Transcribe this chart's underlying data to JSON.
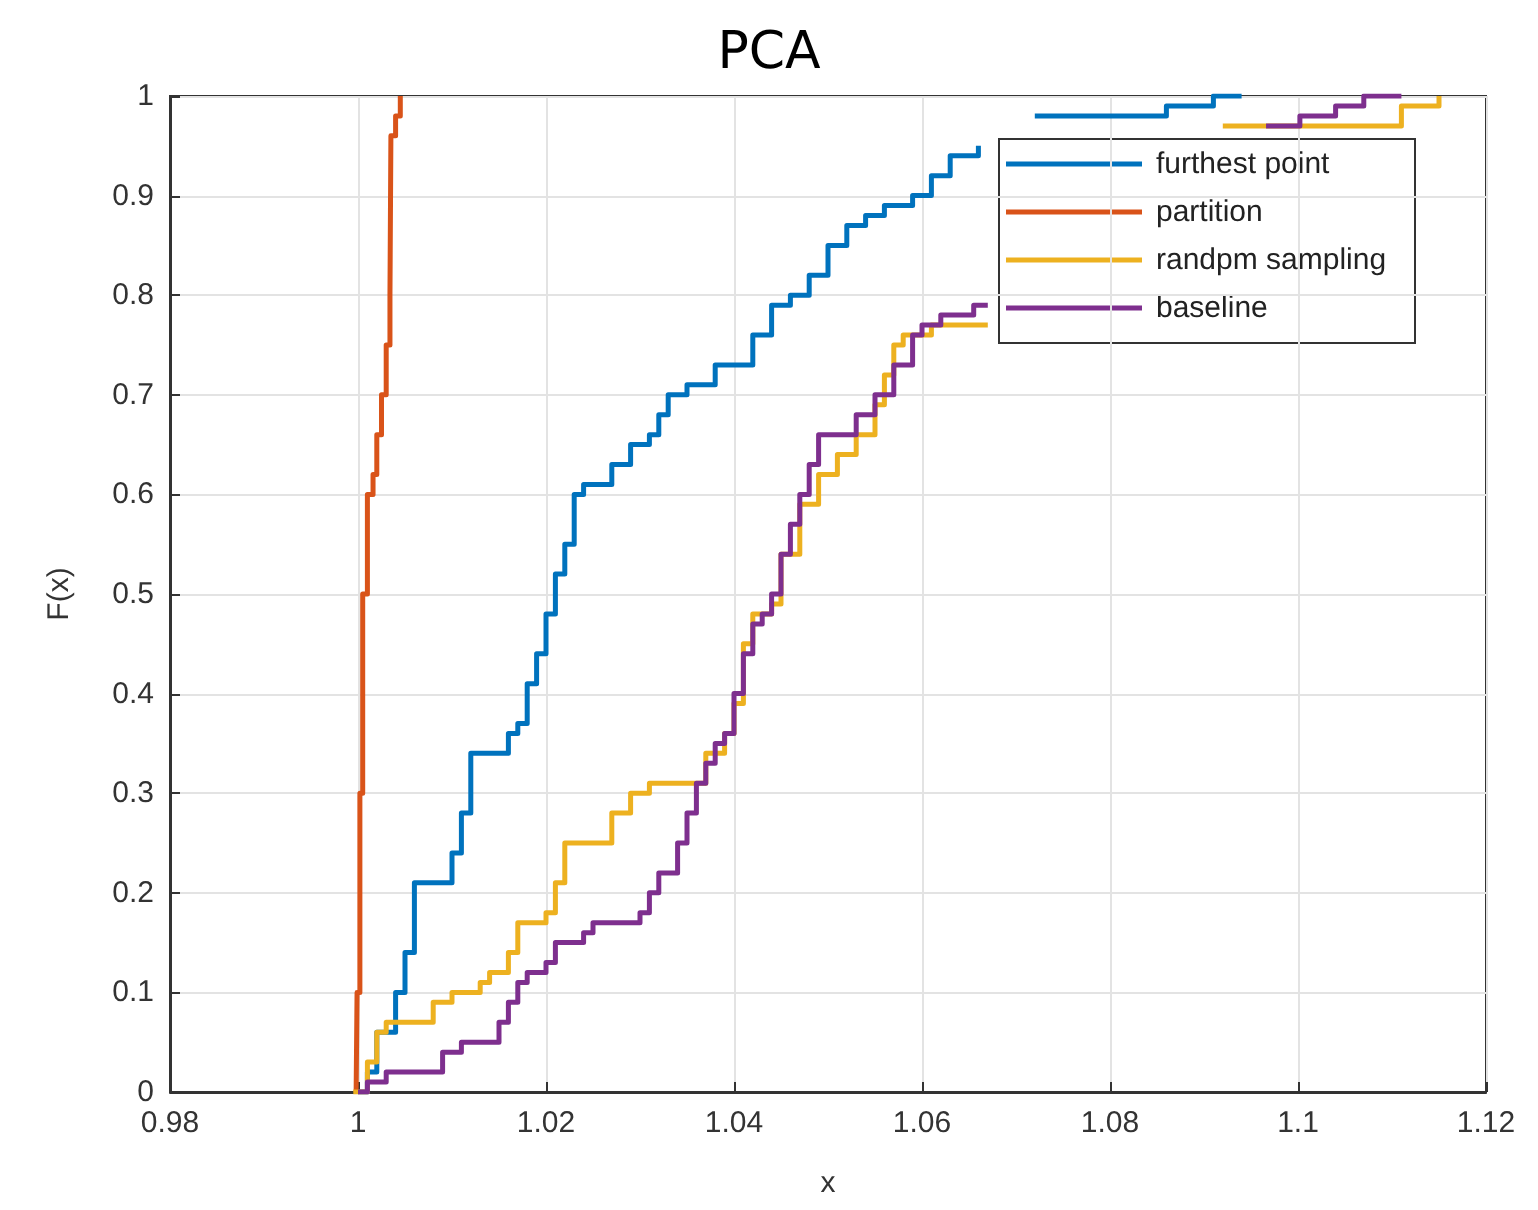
{
  "chart_data": {
    "type": "step",
    "title": "PCA",
    "xlabel": "x",
    "ylabel": "F(x)",
    "xlim": [
      0.98,
      1.12
    ],
    "xticks": [
      0.98,
      1,
      1.02,
      1.04,
      1.06,
      1.08,
      1.1,
      1.12
    ],
    "ylim": [
      0,
      1
    ],
    "yticks": [
      0,
      0.1,
      0.2,
      0.3,
      0.4,
      0.5,
      0.6,
      0.7,
      0.8,
      0.9,
      1
    ],
    "grid": true,
    "legend": "top right",
    "line_style": "solid",
    "marker": "none",
    "series": [
      {
        "name": "furthest point",
        "color": "#0072bd",
        "x": [
          1.0,
          1.001,
          1.002,
          1.004,
          1.005,
          1.006,
          1.009,
          1.01,
          1.011,
          1.012,
          1.015,
          1.016,
          1.017,
          1.018,
          1.019,
          1.02,
          1.021,
          1.022,
          1.023,
          1.024,
          1.026,
          1.027,
          1.029,
          1.031,
          1.032,
          1.033,
          1.035,
          1.038,
          1.041,
          1.042,
          1.044,
          1.046,
          1.048,
          1.05,
          1.052,
          1.054,
          1.056,
          1.059,
          1.061,
          1.063,
          1.066,
          null,
          1.072,
          1.086,
          1.091,
          1.094
        ],
        "values": [
          0,
          0.02,
          0.06,
          0.1,
          0.14,
          0.21,
          0.21,
          0.24,
          0.28,
          0.34,
          0.34,
          0.36,
          0.37,
          0.41,
          0.44,
          0.48,
          0.52,
          0.55,
          0.6,
          0.61,
          0.61,
          0.63,
          0.65,
          0.66,
          0.68,
          0.7,
          0.71,
          0.73,
          0.73,
          0.76,
          0.79,
          0.8,
          0.82,
          0.85,
          0.87,
          0.88,
          0.89,
          0.9,
          0.92,
          0.94,
          0.95,
          null,
          0.98,
          0.99,
          1.0,
          1.0
        ]
      },
      {
        "name": "partition",
        "color": "#d95319",
        "x": [
          0.9998,
          0.9999,
          1.0002,
          1.0005,
          1.001,
          1.0016,
          1.002,
          1.0025,
          1.003,
          1.0034,
          1.0035,
          1.004,
          1.0045
        ],
        "values": [
          0,
          0.1,
          0.3,
          0.5,
          0.6,
          0.62,
          0.66,
          0.7,
          0.75,
          0.8,
          0.96,
          0.98,
          1.0
        ]
      },
      {
        "name": "randpm sampling",
        "color": "#edb120",
        "x": [
          0.9995,
          1.001,
          1.002,
          1.003,
          1.007,
          1.008,
          1.01,
          1.013,
          1.014,
          1.016,
          1.017,
          1.02,
          1.021,
          1.022,
          1.026,
          1.027,
          1.029,
          1.031,
          1.036,
          1.037,
          1.039,
          1.04,
          1.041,
          1.042,
          1.044,
          1.045,
          1.047,
          1.049,
          1.051,
          1.053,
          1.055,
          1.056,
          1.057,
          1.058,
          1.061,
          1.067,
          null,
          1.092,
          1.11,
          1.111,
          1.115
        ],
        "values": [
          0,
          0.03,
          0.06,
          0.07,
          0.07,
          0.09,
          0.1,
          0.11,
          0.12,
          0.14,
          0.17,
          0.18,
          0.21,
          0.25,
          0.25,
          0.28,
          0.3,
          0.31,
          0.31,
          0.34,
          0.36,
          0.39,
          0.45,
          0.48,
          0.49,
          0.54,
          0.59,
          0.62,
          0.64,
          0.66,
          0.69,
          0.72,
          0.75,
          0.76,
          0.77,
          0.77,
          null,
          0.97,
          0.97,
          0.99,
          1.0
        ]
      },
      {
        "name": "baseline",
        "color": "#7e2f8e",
        "x": [
          1.0,
          1.001,
          1.003,
          1.008,
          1.009,
          1.011,
          1.014,
          1.015,
          1.016,
          1.017,
          1.018,
          1.02,
          1.021,
          1.024,
          1.025,
          1.029,
          1.03,
          1.031,
          1.032,
          1.034,
          1.035,
          1.036,
          1.037,
          1.038,
          1.039,
          1.04,
          1.041,
          1.042,
          1.043,
          1.044,
          1.045,
          1.046,
          1.047,
          1.048,
          1.049,
          1.052,
          1.053,
          1.055,
          1.057,
          1.059,
          1.06,
          1.062,
          1.0655,
          1.067,
          null,
          1.0966,
          1.1002,
          1.104,
          1.107,
          1.111
        ],
        "values": [
          0,
          0.01,
          0.02,
          0.02,
          0.04,
          0.05,
          0.05,
          0.07,
          0.09,
          0.11,
          0.12,
          0.13,
          0.15,
          0.16,
          0.17,
          0.17,
          0.18,
          0.2,
          0.22,
          0.25,
          0.28,
          0.31,
          0.33,
          0.35,
          0.36,
          0.4,
          0.44,
          0.47,
          0.48,
          0.5,
          0.54,
          0.57,
          0.6,
          0.63,
          0.66,
          0.66,
          0.68,
          0.7,
          0.73,
          0.76,
          0.77,
          0.78,
          0.79,
          0.79,
          null,
          0.97,
          0.98,
          0.99,
          1.0,
          1.0
        ]
      }
    ]
  }
}
